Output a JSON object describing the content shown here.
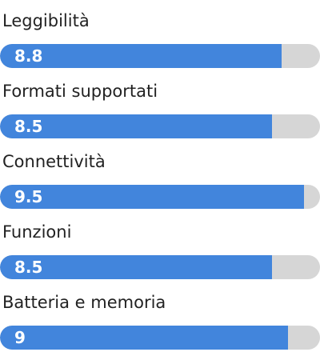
{
  "colors": {
    "bar_fill": "#4285dc",
    "bar_track": "#d6d6d6",
    "label_text": "#222222",
    "value_text": "#ffffff"
  },
  "ratings": [
    {
      "label": "Leggibilità",
      "value_text": "8.8",
      "score": 8.8
    },
    {
      "label": "Formati supportati",
      "value_text": "8.5",
      "score": 8.5
    },
    {
      "label": "Connettività",
      "value_text": "9.5",
      "score": 9.5
    },
    {
      "label": "Funzioni",
      "value_text": "8.5",
      "score": 8.5
    },
    {
      "label": "Batteria e memoria",
      "value_text": "9",
      "score": 9
    }
  ]
}
